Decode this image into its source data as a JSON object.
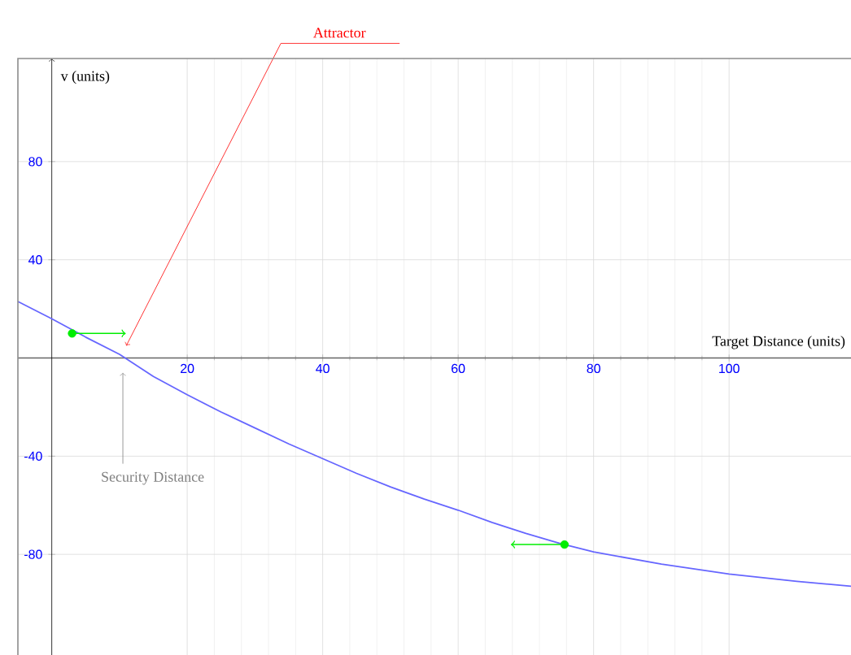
{
  "chart_data": {
    "type": "line",
    "xlabel": "Target Distance (units)",
    "ylabel": "v (units)",
    "xlim": [
      -5,
      118
    ],
    "ylim": [
      -121,
      122
    ],
    "xticks": [
      20,
      40,
      60,
      80,
      100
    ],
    "yticks": [
      80,
      40,
      -40,
      -80
    ],
    "grid": true,
    "series": [
      {
        "color": "#6666ff",
        "x": [
          -5,
          0,
          5,
          10,
          15,
          20,
          25,
          30,
          35,
          40,
          45,
          50,
          55,
          60,
          65,
          70,
          75,
          80,
          90,
          100,
          110,
          118
        ],
        "values": [
          23,
          16,
          8.5,
          1.5,
          -7.5,
          -15,
          -22,
          -28.5,
          -35,
          -41,
          -47,
          -52.5,
          -57.5,
          -62,
          -67,
          -71.5,
          -75.5,
          -79,
          -84,
          -88,
          -91,
          -93
        ]
      },
      {
        "type": "scatter",
        "color": "#00ee00",
        "x": [
          3,
          75.7
        ],
        "values": [
          10,
          -76
        ]
      }
    ],
    "annotations": [
      {
        "text": "Attractor",
        "x": 11,
        "y": 5
      },
      {
        "text": "Security Distance",
        "x": 10.5,
        "y": -6
      }
    ]
  }
}
